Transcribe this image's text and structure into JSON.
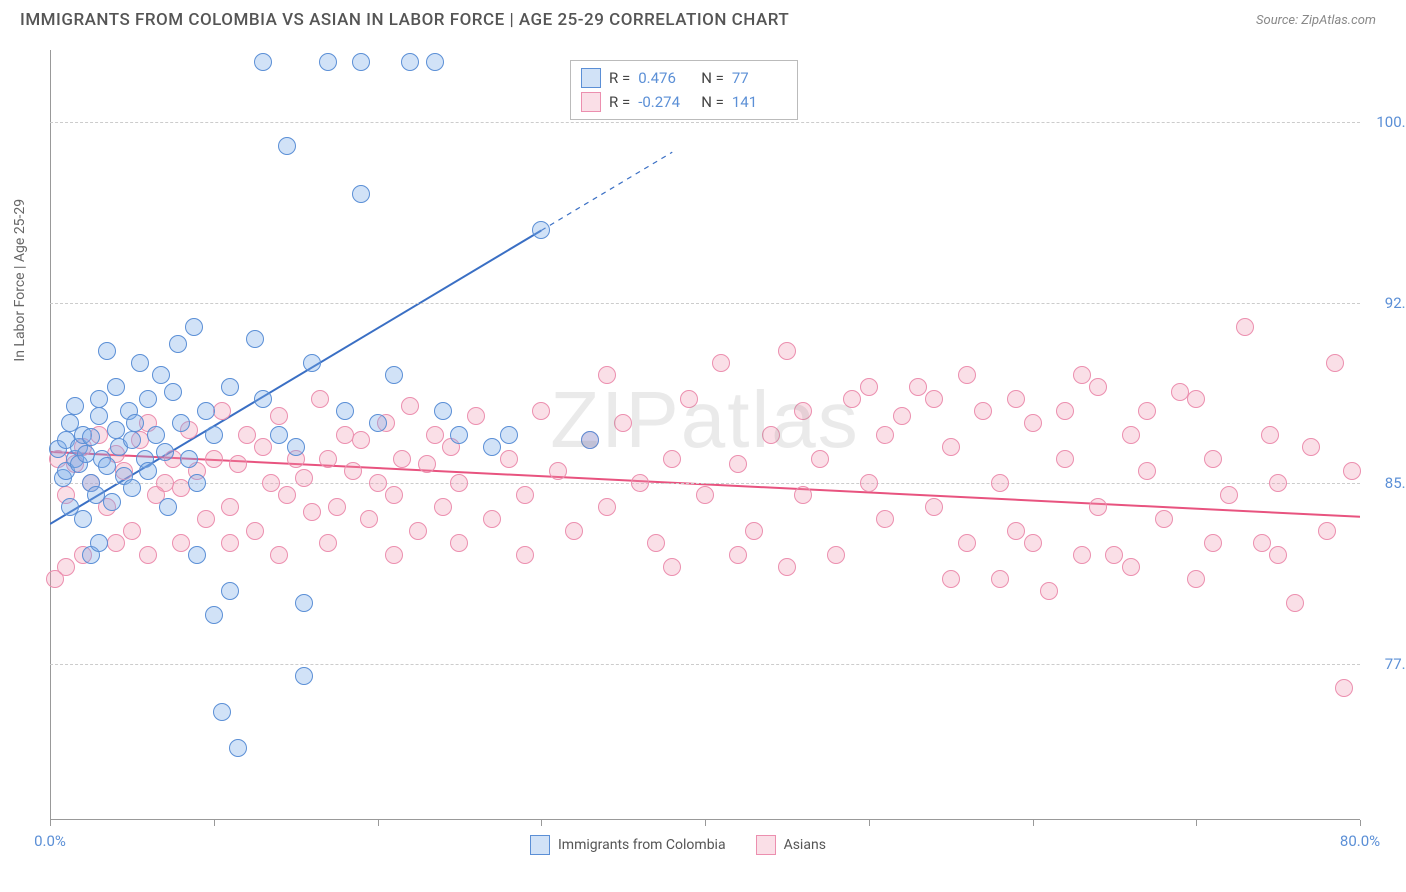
{
  "title": "IMMIGRANTS FROM COLOMBIA VS ASIAN IN LABOR FORCE | AGE 25-29 CORRELATION CHART",
  "source": "Source: ZipAtlas.com",
  "watermark": "ZIPatlas",
  "chart": {
    "type": "scatter",
    "ylabel": "In Labor Force | Age 25-29",
    "xlim": [
      0,
      80
    ],
    "ylim": [
      71,
      103
    ],
    "yticks": [
      77.5,
      85.0,
      92.5,
      100.0
    ],
    "ytick_labels": [
      "77.5%",
      "85.0%",
      "92.5%",
      "100.0%"
    ],
    "xticks": [
      0,
      10,
      20,
      30,
      40,
      50,
      60,
      70,
      80
    ],
    "xtick_labels_shown": {
      "0": "0.0%",
      "80": "80.0%"
    },
    "background_color": "#ffffff",
    "grid_color": "#cccccc",
    "point_radius": 9,
    "series": [
      {
        "name": "Immigrants from Colombia",
        "color_fill": "rgba(123,171,232,0.35)",
        "color_stroke": "#5b8fd6",
        "R": "0.476",
        "N": "77",
        "trend": {
          "x1": 0,
          "y1": 83.3,
          "x2": 30,
          "y2": 95.5,
          "dash_after_x": 30,
          "color": "#3a6fc4",
          "width": 2
        },
        "points": [
          [
            0.5,
            86.4
          ],
          [
            0.8,
            85.2
          ],
          [
            1.0,
            86.8
          ],
          [
            1.0,
            85.5
          ],
          [
            1.2,
            87.5
          ],
          [
            1.2,
            84.0
          ],
          [
            1.5,
            86.0
          ],
          [
            1.5,
            88.2
          ],
          [
            1.8,
            85.8
          ],
          [
            1.8,
            86.5
          ],
          [
            2.0,
            87.0
          ],
          [
            2.0,
            83.5
          ],
          [
            2.2,
            86.2
          ],
          [
            2.5,
            85.0
          ],
          [
            2.5,
            86.9
          ],
          [
            2.8,
            84.5
          ],
          [
            3.0,
            87.8
          ],
          [
            3.0,
            88.5
          ],
          [
            3.2,
            86.0
          ],
          [
            3.5,
            85.7
          ],
          [
            3.5,
            90.5
          ],
          [
            3.8,
            84.2
          ],
          [
            4.0,
            87.2
          ],
          [
            4.0,
            89.0
          ],
          [
            4.2,
            86.5
          ],
          [
            4.5,
            85.3
          ],
          [
            4.8,
            88.0
          ],
          [
            5.0,
            86.8
          ],
          [
            5.0,
            84.8
          ],
          [
            5.2,
            87.5
          ],
          [
            5.5,
            90.0
          ],
          [
            5.8,
            86.0
          ],
          [
            6.0,
            88.5
          ],
          [
            6.0,
            85.5
          ],
          [
            6.5,
            87.0
          ],
          [
            6.8,
            89.5
          ],
          [
            7.0,
            86.3
          ],
          [
            7.2,
            84.0
          ],
          [
            7.5,
            88.8
          ],
          [
            7.8,
            90.8
          ],
          [
            8.0,
            87.5
          ],
          [
            8.5,
            86.0
          ],
          [
            8.8,
            91.5
          ],
          [
            9.0,
            85.0
          ],
          [
            9.0,
            82.0
          ],
          [
            9.5,
            88.0
          ],
          [
            10.0,
            87.0
          ],
          [
            10.0,
            79.5
          ],
          [
            10.5,
            75.5
          ],
          [
            11.0,
            89.0
          ],
          [
            11.0,
            80.5
          ],
          [
            11.5,
            74.0
          ],
          [
            12.5,
            91.0
          ],
          [
            13.0,
            88.5
          ],
          [
            13.0,
            102.5
          ],
          [
            14.0,
            87.0
          ],
          [
            14.5,
            99.0
          ],
          [
            15.0,
            86.5
          ],
          [
            15.5,
            80.0
          ],
          [
            15.5,
            77.0
          ],
          [
            16.0,
            90.0
          ],
          [
            17.0,
            102.5
          ],
          [
            18.0,
            88.0
          ],
          [
            19.0,
            97.0
          ],
          [
            19.0,
            102.5
          ],
          [
            20.0,
            87.5
          ],
          [
            21.0,
            89.5
          ],
          [
            22.0,
            102.5
          ],
          [
            23.5,
            102.5
          ],
          [
            24.0,
            88.0
          ],
          [
            25.0,
            87.0
          ],
          [
            27.0,
            86.5
          ],
          [
            28.0,
            87.0
          ],
          [
            30.0,
            95.5
          ],
          [
            33.0,
            86.8
          ],
          [
            2.5,
            82.0
          ],
          [
            3.0,
            82.5
          ]
        ]
      },
      {
        "name": "Asians",
        "color_fill": "rgba(240,150,175,0.3)",
        "color_stroke": "#ec8faf",
        "R": "-0.274",
        "N": "141",
        "trend": {
          "x1": 0,
          "y1": 86.3,
          "x2": 80,
          "y2": 83.6,
          "color": "#e8537f",
          "width": 2
        },
        "points": [
          [
            0.5,
            86.0
          ],
          [
            1.0,
            84.5
          ],
          [
            1.0,
            81.5
          ],
          [
            1.5,
            85.8
          ],
          [
            2.0,
            86.5
          ],
          [
            2.5,
            85.0
          ],
          [
            3.0,
            87.0
          ],
          [
            3.5,
            84.0
          ],
          [
            4.0,
            86.2
          ],
          [
            4.5,
            85.5
          ],
          [
            5.0,
            83.0
          ],
          [
            5.5,
            86.8
          ],
          [
            6.0,
            87.5
          ],
          [
            6.5,
            84.5
          ],
          [
            7.0,
            85.0
          ],
          [
            7.5,
            86.0
          ],
          [
            8.0,
            84.8
          ],
          [
            8.5,
            87.2
          ],
          [
            9.0,
            85.5
          ],
          [
            9.5,
            83.5
          ],
          [
            10.0,
            86.0
          ],
          [
            10.5,
            88.0
          ],
          [
            11.0,
            84.0
          ],
          [
            11.5,
            85.8
          ],
          [
            12.0,
            87.0
          ],
          [
            12.5,
            83.0
          ],
          [
            13.0,
            86.5
          ],
          [
            13.5,
            85.0
          ],
          [
            14.0,
            87.8
          ],
          [
            14.5,
            84.5
          ],
          [
            15.0,
            86.0
          ],
          [
            15.5,
            85.2
          ],
          [
            16.0,
            83.8
          ],
          [
            16.5,
            88.5
          ],
          [
            17.0,
            86.0
          ],
          [
            17.5,
            84.0
          ],
          [
            18.0,
            87.0
          ],
          [
            18.5,
            85.5
          ],
          [
            19.0,
            86.8
          ],
          [
            19.5,
            83.5
          ],
          [
            20.0,
            85.0
          ],
          [
            20.5,
            87.5
          ],
          [
            21.0,
            84.5
          ],
          [
            21.5,
            86.0
          ],
          [
            22.0,
            88.2
          ],
          [
            22.5,
            83.0
          ],
          [
            23.0,
            85.8
          ],
          [
            23.5,
            87.0
          ],
          [
            24.0,
            84.0
          ],
          [
            24.5,
            86.5
          ],
          [
            25.0,
            85.0
          ],
          [
            26.0,
            87.8
          ],
          [
            27.0,
            83.5
          ],
          [
            28.0,
            86.0
          ],
          [
            29.0,
            84.5
          ],
          [
            30.0,
            88.0
          ],
          [
            31.0,
            85.5
          ],
          [
            32.0,
            83.0
          ],
          [
            33.0,
            86.8
          ],
          [
            34.0,
            84.0
          ],
          [
            35.0,
            87.5
          ],
          [
            36.0,
            85.0
          ],
          [
            37.0,
            82.5
          ],
          [
            38.0,
            86.0
          ],
          [
            39.0,
            88.5
          ],
          [
            40.0,
            84.5
          ],
          [
            41.0,
            90.0
          ],
          [
            42.0,
            85.8
          ],
          [
            43.0,
            83.0
          ],
          [
            44.0,
            87.0
          ],
          [
            45.0,
            90.5
          ],
          [
            46.0,
            84.5
          ],
          [
            47.0,
            86.0
          ],
          [
            48.0,
            82.0
          ],
          [
            49.0,
            88.5
          ],
          [
            50.0,
            85.0
          ],
          [
            51.0,
            83.5
          ],
          [
            52.0,
            87.8
          ],
          [
            53.0,
            89.0
          ],
          [
            54.0,
            84.0
          ],
          [
            55.0,
            86.5
          ],
          [
            56.0,
            82.5
          ],
          [
            57.0,
            88.0
          ],
          [
            58.0,
            85.0
          ],
          [
            59.0,
            83.0
          ],
          [
            60.0,
            87.5
          ],
          [
            61.0,
            80.5
          ],
          [
            62.0,
            86.0
          ],
          [
            63.0,
            89.5
          ],
          [
            64.0,
            84.0
          ],
          [
            65.0,
            82.0
          ],
          [
            66.0,
            87.0
          ],
          [
            67.0,
            85.5
          ],
          [
            68.0,
            83.5
          ],
          [
            69.0,
            88.8
          ],
          [
            70.0,
            81.0
          ],
          [
            71.0,
            86.0
          ],
          [
            72.0,
            84.5
          ],
          [
            73.0,
            91.5
          ],
          [
            74.0,
            82.5
          ],
          [
            74.5,
            87.0
          ],
          [
            75.0,
            85.0
          ],
          [
            76.0,
            80.0
          ],
          [
            77.0,
            86.5
          ],
          [
            78.0,
            83.0
          ],
          [
            78.5,
            90.0
          ],
          [
            79.0,
            76.5
          ],
          [
            79.5,
            85.5
          ],
          [
            2.0,
            82.0
          ],
          [
            0.3,
            81.0
          ],
          [
            4.0,
            82.5
          ],
          [
            6.0,
            82.0
          ],
          [
            8.0,
            82.5
          ],
          [
            11.0,
            82.5
          ],
          [
            14.0,
            82.0
          ],
          [
            17.0,
            82.5
          ],
          [
            21.0,
            82.0
          ],
          [
            25.0,
            82.5
          ],
          [
            29.0,
            82.0
          ],
          [
            34.0,
            89.5
          ],
          [
            38.0,
            81.5
          ],
          [
            42.0,
            82.0
          ],
          [
            46.0,
            88.0
          ],
          [
            50.0,
            89.0
          ],
          [
            54.0,
            88.5
          ],
          [
            58.0,
            81.0
          ],
          [
            62.0,
            88.0
          ],
          [
            66.0,
            81.5
          ],
          [
            70.0,
            88.5
          ],
          [
            56.0,
            89.5
          ],
          [
            60.0,
            82.5
          ],
          [
            64.0,
            89.0
          ],
          [
            45.0,
            81.5
          ],
          [
            51.0,
            87.0
          ],
          [
            55.0,
            81.0
          ],
          [
            59.0,
            88.5
          ],
          [
            63.0,
            82.0
          ],
          [
            67.0,
            88.0
          ],
          [
            71.0,
            82.5
          ],
          [
            75.0,
            82.0
          ]
        ]
      }
    ],
    "bottom_legend": [
      {
        "swatch": "blue",
        "label": "Immigrants from Colombia"
      },
      {
        "swatch": "pink",
        "label": "Asians"
      }
    ]
  }
}
